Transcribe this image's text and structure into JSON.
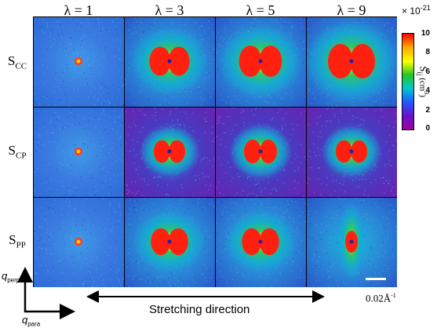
{
  "column_headers": [
    "λ = 1",
    "λ = 3",
    "λ = 5",
    "λ = 9"
  ],
  "rows": [
    {
      "main": "S",
      "sub": "CC"
    },
    {
      "main": "S",
      "sub": "CP"
    },
    {
      "main": "S",
      "sub": "PP"
    }
  ],
  "colorbar": {
    "multiplier_prefix": "× 10",
    "multiplier_exponent": "-21",
    "ticks": [
      "10",
      "8",
      "6",
      "4",
      "2",
      "0"
    ],
    "label_main": "S",
    "label_sub": "ij",
    "label_units": " (cm",
    "label_units_exp": "3",
    "label_close": ")",
    "colors": [
      "#ff0000",
      "#ffa800",
      "#ffff00",
      "#22c822",
      "#00c8d0",
      "#1e5aff",
      "#6a10c8",
      "#a000a0"
    ]
  },
  "axes": {
    "perp_label": "q",
    "perp_sub": "perp",
    "para_label": "q",
    "para_sub": "para",
    "stretch_label": "Stretching direction"
  },
  "scale_bar": {
    "value": "0.02Å",
    "exponent": "-1"
  },
  "panel_intensity": [
    [
      0.12,
      0.75,
      0.85,
      1.0
    ],
    [
      0.12,
      0.45,
      0.5,
      0.45
    ],
    [
      0.1,
      0.65,
      0.65,
      0.55
    ]
  ]
}
